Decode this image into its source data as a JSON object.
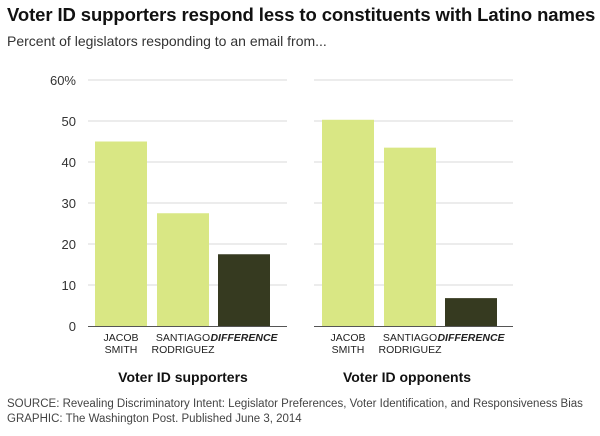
{
  "chart_data": {
    "type": "bar",
    "title": "Voter ID supporters respond less to constituents with Latino names",
    "subtitle": "Percent of legislators responding to an email from...",
    "ylim": [
      0,
      60
    ],
    "yticks": [
      "0",
      "10",
      "20",
      "30",
      "40",
      "50",
      "60%"
    ],
    "groups": [
      {
        "name": "Voter ID supporters",
        "categories": [
          {
            "lines": [
              "JACOB",
              "SMITH"
            ],
            "value": 45,
            "kind": "base"
          },
          {
            "lines": [
              "SANTIAGO",
              "RODRIGUEZ"
            ],
            "value": 27.5,
            "kind": "base"
          },
          {
            "lines": [
              "DIFFERENCE"
            ],
            "value": 17.5,
            "kind": "difference"
          }
        ]
      },
      {
        "name": "Voter ID opponents",
        "categories": [
          {
            "lines": [
              "JACOB",
              "SMITH"
            ],
            "value": 50.3,
            "kind": "base"
          },
          {
            "lines": [
              "SANTIAGO",
              "RODRIGUEZ"
            ],
            "value": 43.5,
            "kind": "base"
          },
          {
            "lines": [
              "DIFFERENCE"
            ],
            "value": 6.8,
            "kind": "difference"
          }
        ]
      }
    ],
    "colors": {
      "base": "#d9e784",
      "difference": "#363a20",
      "grid": "#d9d9d9",
      "axis": "#555555"
    }
  },
  "footer": {
    "source": "SOURCE: Revealing Discriminatory Intent: Legislator Preferences, Voter Identification, and Responsiveness Bias",
    "graphic": "GRAPHIC: The Washington Post. Published June 3, 2014"
  }
}
